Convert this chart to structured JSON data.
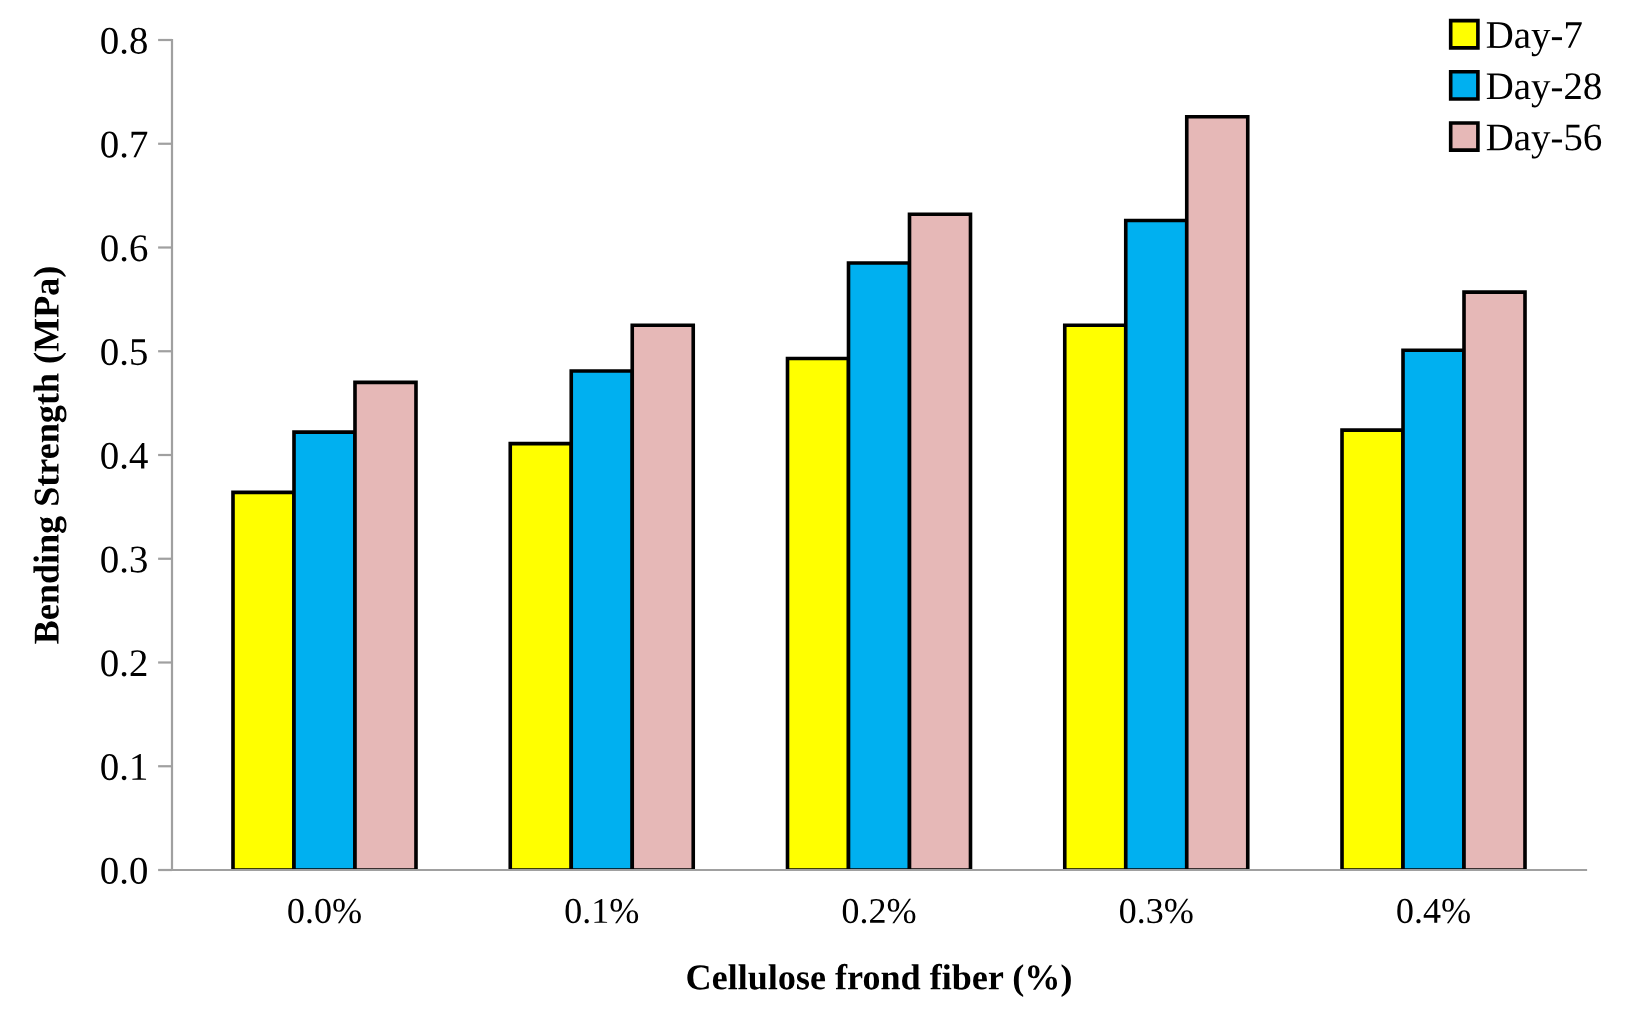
{
  "chart_data": {
    "type": "bar",
    "xlabel": "Cellulose frond fiber (%)",
    "ylabel": "Bending Strength (MPa)",
    "categories": [
      "0.0%",
      "0.1%",
      "0.2%",
      "0.3%",
      "0.4%"
    ],
    "series": [
      {
        "name": "Day-7",
        "color": "#ffff00",
        "values": [
          0.364,
          0.411,
          0.493,
          0.525,
          0.424
        ]
      },
      {
        "name": "Day-28",
        "color": "#00b0f0",
        "values": [
          0.422,
          0.481,
          0.585,
          0.626,
          0.501
        ]
      },
      {
        "name": "Day-56",
        "color": "#e6b8b7",
        "values": [
          0.47,
          0.525,
          0.632,
          0.726,
          0.557
        ]
      }
    ],
    "ylim": [
      0,
      0.8
    ],
    "yticks": [
      {
        "value": 0,
        "label": "0.0"
      },
      0.1,
      0.2,
      0.3,
      0.4,
      0.5,
      0.6,
      0.7,
      0.8
    ],
    "grid": false,
    "legend": "top right"
  }
}
